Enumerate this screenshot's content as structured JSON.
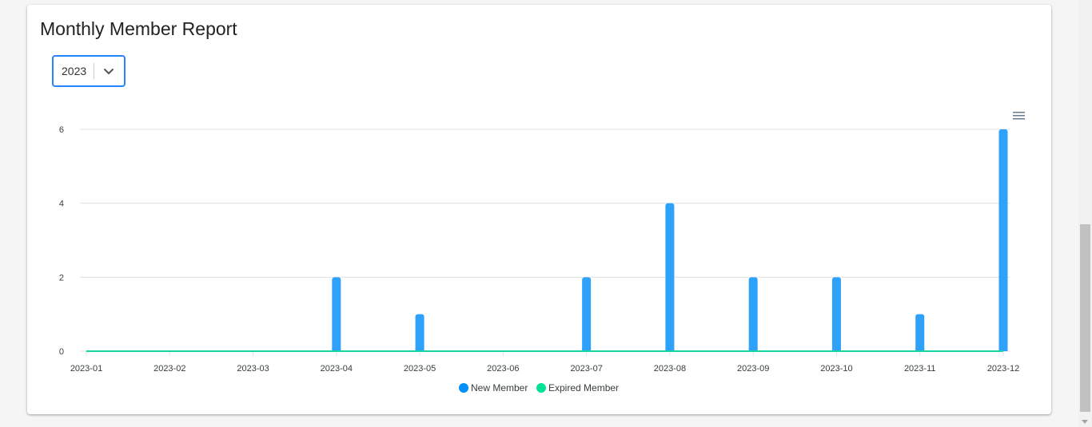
{
  "report": {
    "title": "Monthly Member Report"
  },
  "year_select": {
    "value": "2023"
  },
  "icons": {
    "dropdown": "chevron-down-icon",
    "chart_menu": "hamburger-menu-icon"
  },
  "colors": {
    "new_member": "#2ea1fb",
    "expired_member": "#10d8a0",
    "select_border": "#2684ff",
    "legend_new_member": "#008ffb",
    "legend_expired_member": "#00e396"
  },
  "chart_data": {
    "type": "bar",
    "title": "",
    "xlabel": "",
    "ylabel": "",
    "categories": [
      "2023-01",
      "2023-02",
      "2023-03",
      "2023-04",
      "2023-05",
      "2023-06",
      "2023-07",
      "2023-08",
      "2023-09",
      "2023-10",
      "2023-11",
      "2023-12"
    ],
    "series": [
      {
        "name": "New Member",
        "type": "bar",
        "values": [
          0,
          0,
          0,
          2,
          1,
          0,
          2,
          4,
          2,
          2,
          1,
          6
        ]
      },
      {
        "name": "Expired Member",
        "type": "line",
        "values": [
          0,
          0,
          0,
          0,
          0,
          0,
          0,
          0,
          0,
          0,
          0,
          0
        ]
      }
    ],
    "ylim": [
      0,
      6
    ],
    "yticks": [
      "0",
      "2",
      "4",
      "6"
    ],
    "grid": true,
    "legend": "bottom-center"
  }
}
